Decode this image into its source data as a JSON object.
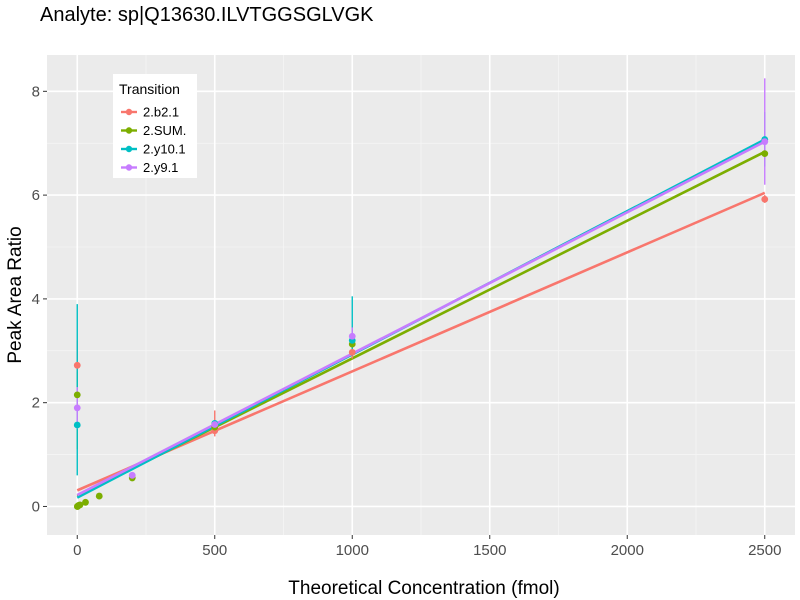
{
  "chart_data": {
    "type": "scatter",
    "title": "Analyte: sp|Q13630.ILVTGGSGLVGK",
    "xlabel": "Theoretical Concentration (fmol)",
    "ylabel": "Peak Area Ratio",
    "xlim": [
      -110,
      2610
    ],
    "ylim": [
      -0.55,
      8.7
    ],
    "x_ticks": [
      0,
      500,
      1000,
      1500,
      2000,
      2500
    ],
    "x_tick_labels": [
      "0",
      "500",
      "1000",
      "1500",
      "2000",
      "2500"
    ],
    "y_ticks": [
      0,
      2,
      4,
      6,
      8
    ],
    "y_tick_labels": [
      "0",
      "2",
      "4",
      "6",
      "8"
    ],
    "grid": true,
    "legend": {
      "title": "Transition",
      "position": "top-left"
    },
    "series": [
      {
        "name": "2.b2.1",
        "color": "#F8766D",
        "points": [
          {
            "x": 0,
            "y": 2.72,
            "ymin": 2.25,
            "ymax": 3.2
          },
          {
            "x": 500,
            "y": 1.46,
            "ymin": 1.35,
            "ymax": 1.85
          },
          {
            "x": 1000,
            "y": 2.97,
            "ymin": 2.85,
            "ymax": 3.1
          },
          {
            "x": 2500,
            "y": 5.92,
            "ymin": 5.85,
            "ymax": 6.0
          }
        ],
        "fit": {
          "intercept": 0.31,
          "slope": 0.0022933
        }
      },
      {
        "name": "2.SUM.",
        "color": "#7CAE00",
        "points": [
          {
            "x": 0,
            "y": 2.15,
            "ymin": 1.1,
            "ymax": 2.6
          },
          {
            "x": 0.5,
            "y": 0.0
          },
          {
            "x": 1,
            "y": 0.0
          },
          {
            "x": 5,
            "y": 0.02
          },
          {
            "x": 10,
            "y": 0.03
          },
          {
            "x": 30,
            "y": 0.08
          },
          {
            "x": 80,
            "y": 0.2
          },
          {
            "x": 200,
            "y": 0.55
          },
          {
            "x": 500,
            "y": 1.53,
            "ymin": 1.45,
            "ymax": 1.65
          },
          {
            "x": 1000,
            "y": 3.13,
            "ymin": 3.0,
            "ymax": 3.25
          },
          {
            "x": 2500,
            "y": 6.8,
            "ymin": 6.7,
            "ymax": 6.9
          }
        ],
        "fit": {
          "intercept": 0.2,
          "slope": 0.0026533
        }
      },
      {
        "name": "2.y10.1",
        "color": "#00BFC4",
        "points": [
          {
            "x": 0,
            "y": 1.57,
            "ymin": 0.6,
            "ymax": 3.9
          },
          {
            "x": 500,
            "y": 1.6
          },
          {
            "x": 1000,
            "y": 3.2,
            "ymin": 2.9,
            "ymax": 4.05
          },
          {
            "x": 2500,
            "y": 7.07,
            "ymin": 6.55,
            "ymax": 7.6
          }
        ],
        "fit": {
          "intercept": 0.17,
          "slope": 0.00276
        }
      },
      {
        "name": "2.y9.1",
        "color": "#C77CFF",
        "points": [
          {
            "x": 0,
            "y": 1.9,
            "ymin": 1.5,
            "ymax": 2.3
          },
          {
            "x": 200,
            "y": 0.6
          },
          {
            "x": 500,
            "y": 1.58
          },
          {
            "x": 1000,
            "y": 3.28,
            "ymin": 3.1,
            "ymax": 3.45
          },
          {
            "x": 2500,
            "y": 7.03,
            "ymin": 6.2,
            "ymax": 8.25
          }
        ],
        "fit": {
          "intercept": 0.22,
          "slope": 0.002724
        }
      }
    ]
  }
}
